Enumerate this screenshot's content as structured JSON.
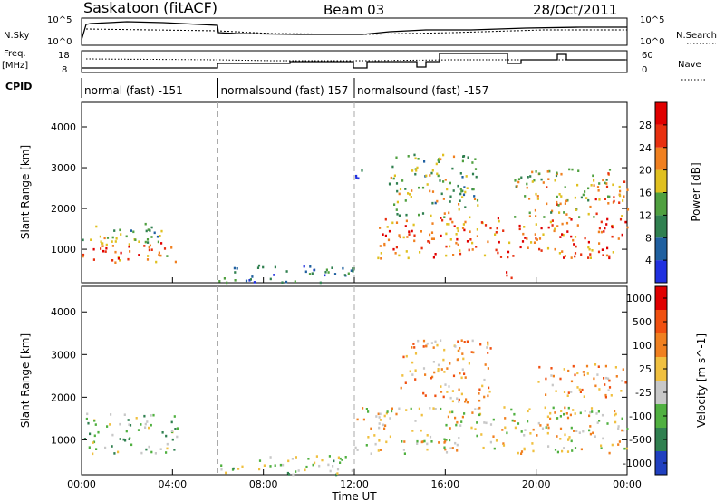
{
  "header": {
    "station": "Saskatoon (fitACF)",
    "beam": "Beam 03",
    "date": "28/Oct/2011"
  },
  "strip_labels": {
    "nsky": "N.Sky",
    "freq_line1": "Freq.",
    "freq_line2": "[MHz]",
    "cpid": "CPID",
    "nsearch": "N.Search",
    "nave": "Nave",
    "nsky_ticks": [
      "10^5",
      "10^0"
    ],
    "nsearch_ticks": [
      "10^5",
      "10^0"
    ],
    "freq_ticks": [
      "18",
      "8"
    ],
    "nave_ticks": [
      "60",
      "0"
    ]
  },
  "cpid_segments": [
    {
      "label": "normal (fast) -151",
      "start_hour": 0,
      "end_hour": 6
    },
    {
      "label": "normalsound (fast) 157",
      "start_hour": 6,
      "end_hour": 12
    },
    {
      "label": "normalsound (fast) -157",
      "start_hour": 12,
      "end_hour": 24
    }
  ],
  "chart_data": [
    {
      "type": "heatmap",
      "title": "",
      "xlabel": "Time UT",
      "ylabel": "Slant Range [km]",
      "xlim": [
        0,
        24
      ],
      "ylim": [
        180,
        4600
      ],
      "x_tick_labels": [
        "00:00",
        "04:00",
        "08:00",
        "12:00",
        "16:00",
        "20:00",
        "00:00"
      ],
      "y_ticks": [
        1000,
        2000,
        3000,
        4000
      ],
      "colorbar": {
        "label": "Power [dB]",
        "ticks": [
          "4",
          "8",
          "12",
          "16",
          "20",
          "24",
          "28"
        ],
        "colors": [
          "#2030e0",
          "#2060a0",
          "#308050",
          "#50a040",
          "#e0c020",
          "#f08020",
          "#e83010",
          "#e00000"
        ]
      },
      "regions": [
        {
          "t0": 0.0,
          "t1": 3.5,
          "r0": 1100,
          "r1": 1650,
          "level": 0.45
        },
        {
          "t0": 0.0,
          "t1": 4.2,
          "r0": 700,
          "r1": 1300,
          "level": 0.7
        },
        {
          "t0": 6.0,
          "t1": 12.0,
          "r0": 200,
          "r1": 650,
          "level": 0.25
        },
        {
          "t0": 12.0,
          "t1": 12.5,
          "r0": 2700,
          "r1": 3150,
          "level": 0.2
        },
        {
          "t0": 13.0,
          "t1": 24.0,
          "r0": 800,
          "r1": 1800,
          "level": 0.75
        },
        {
          "t0": 13.5,
          "t1": 17.5,
          "r0": 1800,
          "r1": 3400,
          "level": 0.45
        },
        {
          "t0": 19.0,
          "t1": 24.0,
          "r0": 1800,
          "r1": 3000,
          "level": 0.55
        },
        {
          "t0": 22.5,
          "t1": 24.0,
          "r0": 2200,
          "r1": 2600,
          "level": 0.8
        },
        {
          "t0": 18.6,
          "t1": 19.0,
          "r0": 300,
          "r1": 900,
          "level": 0.95
        }
      ]
    },
    {
      "type": "heatmap",
      "title": "",
      "xlabel": "Time UT",
      "ylabel": "Slant Range [km]",
      "xlim": [
        0,
        24
      ],
      "ylim": [
        180,
        4600
      ],
      "x_tick_labels": [
        "00:00",
        "04:00",
        "08:00",
        "12:00",
        "16:00",
        "20:00",
        "00:00"
      ],
      "y_ticks": [
        1000,
        2000,
        3000,
        4000
      ],
      "colorbar": {
        "label": "Velocity [m s^-1]",
        "ticks": [
          "1000",
          "500",
          "100",
          "25",
          "-25",
          "-100",
          "-500",
          "-1000"
        ],
        "colors": [
          "#2040c0",
          "#308050",
          "#50b040",
          "#c8c8c8",
          "#f0c040",
          "#f08020",
          "#f05010",
          "#e00000"
        ]
      },
      "regions": [
        {
          "t0": 0.0,
          "t1": 4.2,
          "r0": 700,
          "r1": 1650,
          "level": 0.35
        },
        {
          "t0": 6.0,
          "t1": 12.0,
          "r0": 200,
          "r1": 650,
          "level": 0.4
        },
        {
          "t0": 12.0,
          "t1": 24.0,
          "r0": 700,
          "r1": 1800,
          "level": 0.5
        },
        {
          "t0": 14.0,
          "t1": 18.0,
          "r0": 1900,
          "r1": 3400,
          "level": 0.65
        },
        {
          "t0": 20.0,
          "t1": 24.0,
          "r0": 2000,
          "r1": 2800,
          "level": 0.65
        }
      ]
    }
  ]
}
